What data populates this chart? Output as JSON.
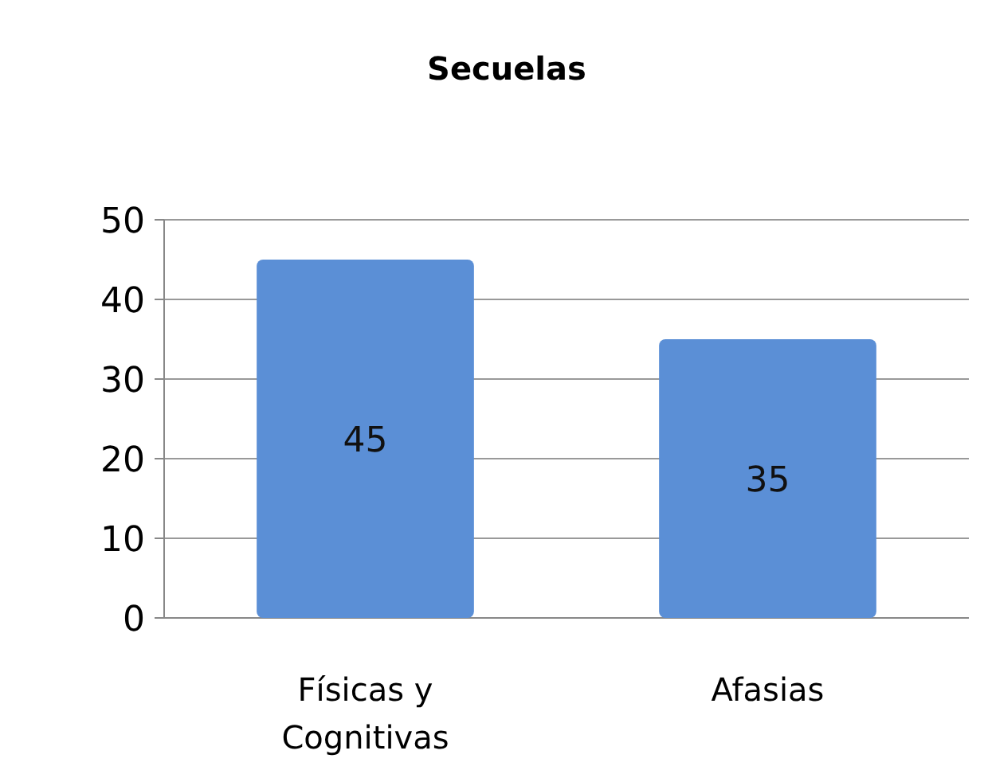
{
  "chart_data": {
    "type": "bar",
    "title": "Secuelas",
    "categories": [
      "Físicas y Cognitivas",
      "Afasias"
    ],
    "values": [
      45,
      35
    ],
    "color": "#5b8fd6",
    "ylim": [
      0,
      50
    ],
    "yticks": [
      0,
      10,
      20,
      30,
      40,
      50
    ],
    "grid": "y",
    "data_labels": true
  }
}
